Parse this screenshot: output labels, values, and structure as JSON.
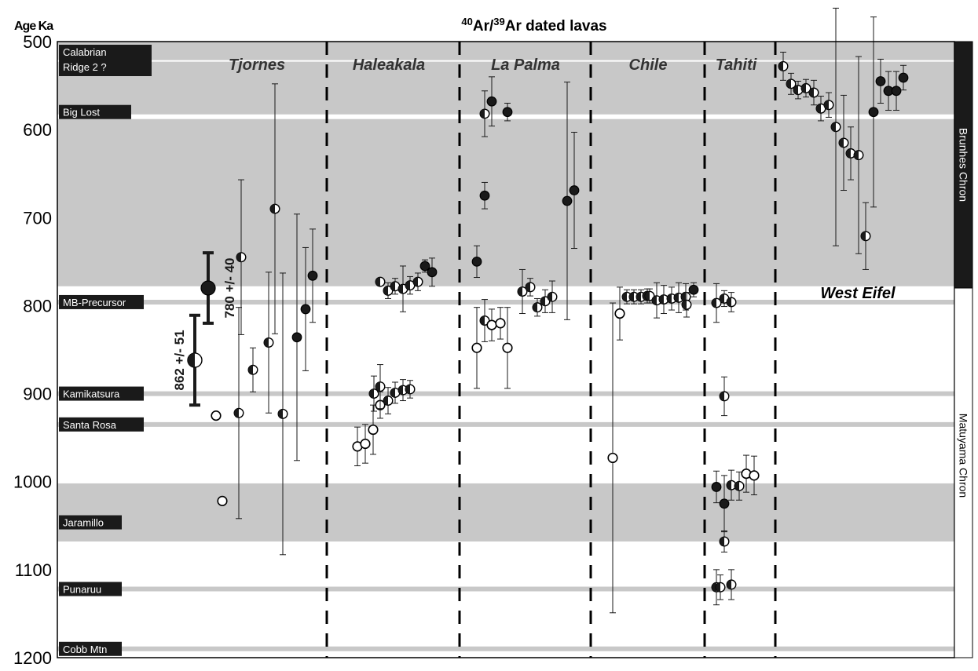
{
  "chart_data": {
    "type": "scatter",
    "title_parts": [
      "40",
      "Ar/",
      "39",
      "Ar dated lavas"
    ],
    "ylabel": "Age Ka",
    "ylim": [
      500,
      1200
    ],
    "y_inverted": true,
    "y_ticks": [
      "500",
      "600",
      "700",
      "800",
      "900",
      "1000",
      "1100",
      "1200"
    ],
    "grey_bands": [
      [
        500,
        578
      ],
      [
        588,
        778
      ],
      [
        1002,
        1068
      ]
    ],
    "excursion_lines": [
      {
        "name": "Calabrian Ridge 2 ?",
        "label_lines": [
          "Calabrian",
          "Ridge 2 ?"
        ],
        "age": 522
      },
      {
        "name": "Big Lost",
        "label_lines": [
          "Big Lost"
        ],
        "age": 580
      },
      {
        "name": "MB-Precursor",
        "label_lines": [
          "MB-Precursor"
        ],
        "age": 796
      },
      {
        "name": "Kamikatsura",
        "label_lines": [
          "Kamikatsura"
        ],
        "age": 900
      },
      {
        "name": "Santa Rosa",
        "label_lines": [
          "Santa Rosa"
        ],
        "age": 935
      },
      {
        "name": "Jaramillo",
        "label_lines": [
          "Jaramillo"
        ],
        "age": 1040
      },
      {
        "name": "Punaruu",
        "label_lines": [
          "Punaruu"
        ],
        "age": 1122
      },
      {
        "name": "Cobb Mtn",
        "label_lines": [
          "Cobb Mtn"
        ],
        "age": 1190
      }
    ],
    "chrons": [
      {
        "name": "Brunhes Chron",
        "from": 500,
        "to": 780,
        "fill": "black"
      },
      {
        "name": "Matuyama Chron",
        "from": 780,
        "to": 1200,
        "fill": "white"
      }
    ],
    "localities": [
      {
        "name": "Tjornes",
        "label_age": 522
      },
      {
        "name": "Haleakala",
        "label_age": 522
      },
      {
        "name": "La Palma",
        "label_age": 522
      },
      {
        "name": "Chile",
        "label_age": 522
      },
      {
        "name": "Tahiti",
        "label_age": 522
      },
      {
        "name": "West Eifel",
        "label_age": 797
      }
    ],
    "highlighted_ages": [
      {
        "label": "780 +/- 40",
        "age": 780,
        "error": 40,
        "marker": "filled"
      },
      {
        "label": "862 +/- 51",
        "age": 862,
        "error": 51,
        "marker": "half"
      }
    ],
    "marker_legend": {
      "filled": "#1a1a1a",
      "open": "#ffffff",
      "outline": "#000000",
      "band": "#c8c8c8"
    },
    "series": [
      {
        "locality": "Tjornes",
        "points": [
          {
            "age": 925,
            "error": 0,
            "marker": "open"
          },
          {
            "age": 1022,
            "error": 0,
            "marker": "open"
          },
          {
            "age": 922,
            "error": 120,
            "marker": "half"
          },
          {
            "age": 745,
            "error": 88,
            "marker": "half"
          },
          {
            "age": 873,
            "error": 25,
            "marker": "half"
          },
          {
            "age": 842,
            "error": 80,
            "marker": "half"
          },
          {
            "age": 690,
            "error": 142,
            "marker": "half"
          },
          {
            "age": 923,
            "error": 160,
            "marker": "half"
          },
          {
            "age": 836,
            "error": 140,
            "marker": "filled"
          },
          {
            "age": 804,
            "error": 70,
            "marker": "filled"
          },
          {
            "age": 766,
            "error": 53,
            "marker": "filled"
          }
        ]
      },
      {
        "locality": "Haleakala",
        "points": [
          {
            "age": 960,
            "error": 22,
            "marker": "open"
          },
          {
            "age": 957,
            "error": 22,
            "marker": "open"
          },
          {
            "age": 941,
            "error": 28,
            "marker": "open"
          },
          {
            "age": 900,
            "error": 20,
            "marker": "half"
          },
          {
            "age": 913,
            "error": 15,
            "marker": "open"
          },
          {
            "age": 892,
            "error": 25,
            "marker": "half"
          },
          {
            "age": 908,
            "error": 15,
            "marker": "half"
          },
          {
            "age": 899,
            "error": 12,
            "marker": "half"
          },
          {
            "age": 896,
            "error": 12,
            "marker": "half"
          },
          {
            "age": 895,
            "error": 10,
            "marker": "half"
          },
          {
            "age": 773,
            "error": 0,
            "marker": "half"
          },
          {
            "age": 783,
            "error": 9,
            "marker": "half"
          },
          {
            "age": 778,
            "error": 9,
            "marker": "half"
          },
          {
            "age": 781,
            "error": 26,
            "marker": "half"
          },
          {
            "age": 777,
            "error": 10,
            "marker": "half"
          },
          {
            "age": 773,
            "error": 10,
            "marker": "half"
          },
          {
            "age": 755,
            "error": 7,
            "marker": "filled"
          },
          {
            "age": 762,
            "error": 16,
            "marker": "filled"
          }
        ]
      },
      {
        "locality": "La Palma",
        "points": [
          {
            "age": 848,
            "error": 46,
            "marker": "open"
          },
          {
            "age": 750,
            "error": 18,
            "marker": "filled"
          },
          {
            "age": 817,
            "error": 24,
            "marker": "half"
          },
          {
            "age": 582,
            "error": 26,
            "marker": "half"
          },
          {
            "age": 568,
            "error": 28,
            "marker": "filled"
          },
          {
            "age": 822,
            "error": 18,
            "marker": "open"
          },
          {
            "age": 675,
            "error": 15,
            "marker": "filled"
          },
          {
            "age": 820,
            "error": 18,
            "marker": "open"
          },
          {
            "age": 580,
            "error": 10,
            "marker": "filled"
          },
          {
            "age": 848,
            "error": 46,
            "marker": "open"
          },
          {
            "age": 784,
            "error": 25,
            "marker": "half"
          },
          {
            "age": 779,
            "error": 10,
            "marker": "half"
          },
          {
            "age": 802,
            "error": 10,
            "marker": "half"
          },
          {
            "age": 795,
            "error": 13,
            "marker": "half"
          },
          {
            "age": 790,
            "error": 18,
            "marker": "half"
          },
          {
            "age": 681,
            "error": 135,
            "marker": "filled"
          },
          {
            "age": 669,
            "error": 66,
            "marker": "filled"
          }
        ]
      },
      {
        "locality": "Chile",
        "points": [
          {
            "age": 973,
            "error": 176,
            "marker": "open"
          },
          {
            "age": 809,
            "error": 30,
            "marker": "open"
          },
          {
            "age": 790,
            "error": 8,
            "marker": "half"
          },
          {
            "age": 790,
            "error": 8,
            "marker": "half"
          },
          {
            "age": 790,
            "error": 8,
            "marker": "half"
          },
          {
            "age": 789,
            "error": 8,
            "marker": "half"
          },
          {
            "age": 789,
            "error": 8,
            "marker": "half"
          },
          {
            "age": 794,
            "error": 20,
            "marker": "half"
          },
          {
            "age": 793,
            "error": 16,
            "marker": "half"
          },
          {
            "age": 792,
            "error": 13,
            "marker": "half"
          },
          {
            "age": 791,
            "error": 17,
            "marker": "half"
          },
          {
            "age": 790,
            "error": 15,
            "marker": "half"
          },
          {
            "age": 799,
            "error": 14,
            "marker": "half"
          },
          {
            "age": 782,
            "error": 8,
            "marker": "filled"
          }
        ]
      },
      {
        "locality": "Tahiti",
        "points": [
          {
            "age": 797,
            "error": 22,
            "marker": "half"
          },
          {
            "age": 903,
            "error": 22,
            "marker": "half"
          },
          {
            "age": 792,
            "error": 9,
            "marker": "half"
          },
          {
            "age": 796,
            "error": 11,
            "marker": "half"
          },
          {
            "age": 1006,
            "error": 18,
            "marker": "filled"
          },
          {
            "age": 1025,
            "error": 32,
            "marker": "filled"
          },
          {
            "age": 1068,
            "error": 12,
            "marker": "half"
          },
          {
            "age": 1120,
            "error": 20,
            "marker": "half"
          },
          {
            "age": 1120,
            "error": 14,
            "marker": "half"
          },
          {
            "age": 1117,
            "error": 17,
            "marker": "half"
          },
          {
            "age": 1004,
            "error": 17,
            "marker": "half"
          },
          {
            "age": 1005,
            "error": 16,
            "marker": "half"
          },
          {
            "age": 991,
            "error": 21,
            "marker": "open"
          },
          {
            "age": 993,
            "error": 22,
            "marker": "open"
          }
        ]
      },
      {
        "locality": "West Eifel",
        "points": [
          {
            "age": 528,
            "error": 16,
            "marker": "half"
          },
          {
            "age": 548,
            "error": 12,
            "marker": "half"
          },
          {
            "age": 555,
            "error": 10,
            "marker": "half"
          },
          {
            "age": 553,
            "error": 10,
            "marker": "half"
          },
          {
            "age": 558,
            "error": 14,
            "marker": "half"
          },
          {
            "age": 576,
            "error": 14,
            "marker": "half"
          },
          {
            "age": 572,
            "error": 14,
            "marker": "half"
          },
          {
            "age": 597,
            "error": 135,
            "marker": "half"
          },
          {
            "age": 615,
            "error": 54,
            "marker": "half"
          },
          {
            "age": 627,
            "error": 30,
            "marker": "half"
          },
          {
            "age": 629,
            "error": 112,
            "marker": "half"
          },
          {
            "age": 721,
            "error": 38,
            "marker": "half"
          },
          {
            "age": 580,
            "error": 108,
            "marker": "filled"
          },
          {
            "age": 545,
            "error": 25,
            "marker": "filled"
          },
          {
            "age": 556,
            "error": 22,
            "marker": "filled"
          },
          {
            "age": 556,
            "error": 22,
            "marker": "filled"
          },
          {
            "age": 541,
            "error": 14,
            "marker": "filled"
          }
        ]
      }
    ]
  }
}
